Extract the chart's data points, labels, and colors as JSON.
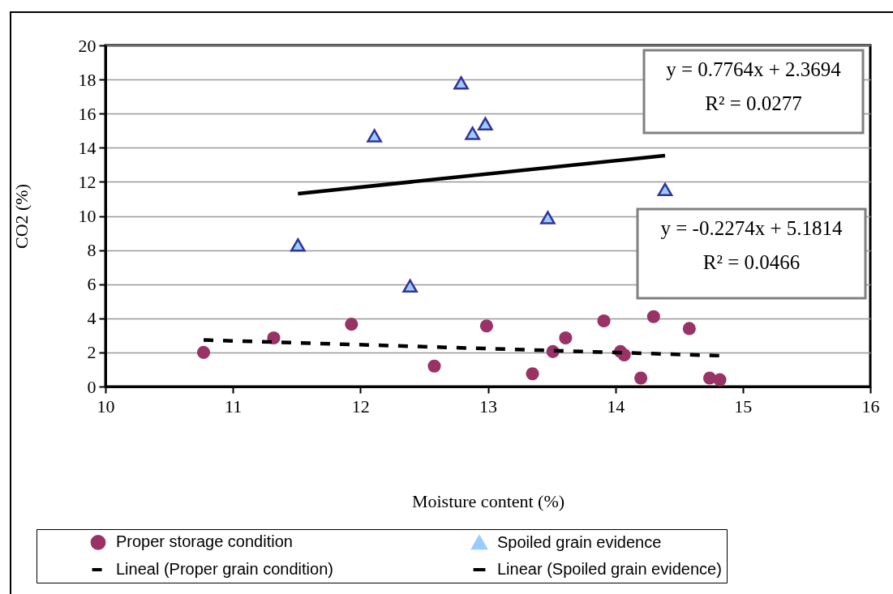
{
  "chart_data": {
    "type": "scatter",
    "xlabel": "Moisture content (%)",
    "ylabel": "CO2 (%)",
    "xlim": [
      10,
      16
    ],
    "xticks": [
      10,
      11,
      12,
      13,
      14,
      15,
      16
    ],
    "ylim": [
      0,
      20
    ],
    "yticks": [
      0,
      2,
      4,
      6,
      8,
      10,
      12,
      14,
      16,
      18,
      20
    ],
    "grid": "y",
    "legend": "bottom",
    "annotations": [
      "y = 0.7764x + 2.3694",
      "R² = 0.0277",
      "y = -0.2274x + 5.1814",
      "R² = 0.0466"
    ],
    "series": [
      {
        "name": "Proper storage condition",
        "type": "scatter",
        "marker": "circle",
        "color": "#993366",
        "x": [
          10.77,
          11.32,
          11.93,
          12.58,
          12.99,
          13.35,
          13.51,
          13.61,
          13.91,
          14.04,
          14.07,
          14.2,
          14.3,
          14.58,
          14.74,
          14.82
        ],
        "values": [
          2.0,
          2.85,
          3.65,
          1.2,
          3.55,
          0.75,
          2.05,
          2.85,
          3.85,
          2.05,
          1.85,
          0.5,
          4.1,
          3.4,
          0.5,
          0.4
        ]
      },
      {
        "name": "Spoiled grain evidence",
        "type": "scatter",
        "marker": "triangle",
        "color": "#99ccff",
        "x": [
          11.51,
          12.11,
          12.39,
          12.79,
          12.88,
          12.98,
          13.47,
          14.39
        ],
        "values": [
          8.3,
          14.7,
          5.9,
          17.8,
          14.85,
          15.4,
          9.9,
          11.55
        ]
      },
      {
        "name": "Lineal (Proper grain condition)",
        "type": "line",
        "line_style": "dashed",
        "color": "#000000",
        "x": [
          10.77,
          14.82
        ],
        "values": [
          2.73,
          1.81
        ]
      },
      {
        "name": "Linear (Spoiled grain evidence)",
        "type": "line",
        "line_style": "solid",
        "color": "#000000",
        "x": [
          11.51,
          14.39
        ],
        "values": [
          11.31,
          13.54
        ]
      }
    ]
  }
}
